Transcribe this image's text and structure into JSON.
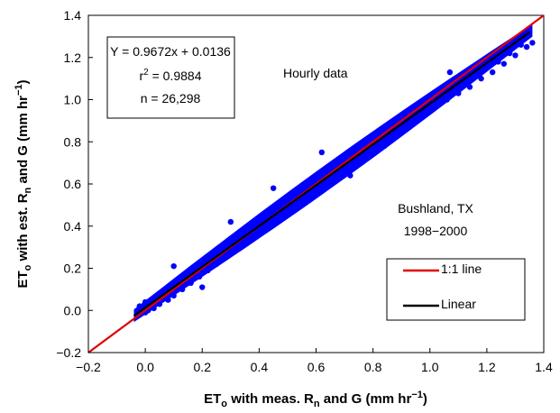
{
  "chart_data": {
    "type": "scatter",
    "xlabel": {
      "main": "ET",
      "sub1": "o",
      "mid": " with meas. R",
      "sub2": "n",
      "tail": " and G (mm hr",
      "sup": "−1",
      "end": ")"
    },
    "ylabel": {
      "main": "ET",
      "sub1": "o",
      "mid": " with est. R",
      "sub2": "n",
      "tail": " and G (mm hr",
      "sup": "−1",
      "end": ")"
    },
    "xlim": [
      -0.2,
      1.4
    ],
    "ylim": [
      -0.2,
      1.4
    ],
    "xticks": [
      "−0.2",
      "0.0",
      "0.2",
      "0.4",
      "0.6",
      "0.8",
      "1.0",
      "1.2",
      "1.4"
    ],
    "yticks": [
      "−0.2",
      "0.0",
      "0.2",
      "0.4",
      "0.6",
      "0.8",
      "1.0",
      "1.2",
      "1.4"
    ],
    "grid": false,
    "equation_box": {
      "equation": "Y = 0.9672x + 0.0136",
      "r2_label": "r",
      "r2_sup": "2",
      "r2_value": " = 0.9884",
      "n": "n = 26,298"
    },
    "annotations": {
      "data_note": "Hourly data",
      "site": "Bushland, TX",
      "years": "1998−2000"
    },
    "legend": {
      "placement": "lower-right",
      "entries": [
        {
          "label": "1:1 line",
          "color": "#e00000"
        },
        {
          "label": "Linear",
          "color": "#000000"
        }
      ]
    },
    "regression": {
      "slope": 0.9672,
      "intercept": 0.0136,
      "x_range": [
        -0.04,
        1.35
      ]
    },
    "one_to_one": {
      "x_range": [
        -0.2,
        1.4
      ]
    },
    "scatter_color": "#0000ff",
    "series": [
      {
        "values": [
          [
            -0.03,
            -0.02
          ],
          [
            -0.02,
            0.02
          ],
          [
            0.0,
            -0.01
          ],
          [
            0.0,
            0.04
          ],
          [
            0.01,
            0.0
          ],
          [
            0.02,
            0.05
          ],
          [
            0.03,
            0.01
          ],
          [
            0.04,
            0.07
          ],
          [
            0.05,
            0.03
          ],
          [
            0.06,
            0.09
          ],
          [
            0.08,
            0.05
          ],
          [
            0.09,
            0.11
          ],
          [
            0.1,
            0.07
          ],
          [
            0.12,
            0.15
          ],
          [
            0.13,
            0.1
          ],
          [
            0.15,
            0.18
          ],
          [
            0.16,
            0.13
          ],
          [
            0.18,
            0.2
          ],
          [
            0.19,
            0.16
          ],
          [
            0.21,
            0.24
          ],
          [
            0.22,
            0.19
          ],
          [
            0.24,
            0.27
          ],
          [
            0.25,
            0.22
          ],
          [
            0.27,
            0.3
          ],
          [
            0.28,
            0.25
          ],
          [
            0.3,
            0.33
          ],
          [
            0.31,
            0.28
          ],
          [
            0.33,
            0.36
          ],
          [
            0.34,
            0.31
          ],
          [
            0.36,
            0.39
          ],
          [
            0.37,
            0.34
          ],
          [
            0.39,
            0.42
          ],
          [
            0.4,
            0.37
          ],
          [
            0.42,
            0.45
          ],
          [
            0.43,
            0.4
          ],
          [
            0.45,
            0.48
          ],
          [
            0.46,
            0.43
          ],
          [
            0.48,
            0.51
          ],
          [
            0.49,
            0.46
          ],
          [
            0.51,
            0.54
          ],
          [
            0.52,
            0.49
          ],
          [
            0.54,
            0.56
          ],
          [
            0.55,
            0.51
          ],
          [
            0.57,
            0.59
          ],
          [
            0.58,
            0.54
          ],
          [
            0.6,
            0.62
          ],
          [
            0.61,
            0.57
          ],
          [
            0.63,
            0.65
          ],
          [
            0.64,
            0.6
          ],
          [
            0.66,
            0.68
          ],
          [
            0.67,
            0.63
          ],
          [
            0.69,
            0.71
          ],
          [
            0.7,
            0.66
          ],
          [
            0.72,
            0.73
          ],
          [
            0.73,
            0.69
          ],
          [
            0.75,
            0.76
          ],
          [
            0.76,
            0.72
          ],
          [
            0.78,
            0.79
          ],
          [
            0.79,
            0.75
          ],
          [
            0.81,
            0.82
          ],
          [
            0.82,
            0.78
          ],
          [
            0.84,
            0.85
          ],
          [
            0.85,
            0.81
          ],
          [
            0.87,
            0.87
          ],
          [
            0.88,
            0.84
          ],
          [
            0.9,
            0.9
          ],
          [
            0.91,
            0.86
          ],
          [
            0.93,
            0.93
          ],
          [
            0.94,
            0.89
          ],
          [
            0.96,
            0.96
          ],
          [
            0.97,
            0.92
          ],
          [
            0.99,
            0.98
          ],
          [
            1.0,
            0.95
          ],
          [
            1.02,
            1.01
          ],
          [
            1.03,
            0.98
          ],
          [
            1.05,
            1.04
          ],
          [
            1.06,
            1.0
          ],
          [
            1.08,
            1.06
          ],
          [
            1.1,
            1.03
          ],
          [
            1.12,
            1.09
          ],
          [
            1.14,
            1.06
          ],
          [
            1.16,
            1.12
          ],
          [
            1.18,
            1.1
          ],
          [
            1.2,
            1.15
          ],
          [
            1.22,
            1.13
          ],
          [
            1.24,
            1.18
          ],
          [
            1.26,
            1.17
          ],
          [
            1.28,
            1.22
          ],
          [
            1.3,
            1.21
          ],
          [
            1.32,
            1.26
          ],
          [
            1.34,
            1.25
          ],
          [
            1.36,
            1.27
          ],
          [
            0.3,
            0.42
          ],
          [
            0.45,
            0.58
          ],
          [
            0.62,
            0.75
          ],
          [
            0.84,
            0.78
          ],
          [
            0.1,
            0.21
          ],
          [
            0.72,
            0.64
          ],
          [
            1.07,
            1.13
          ],
          [
            0.2,
            0.11
          ]
        ]
      }
    ]
  }
}
